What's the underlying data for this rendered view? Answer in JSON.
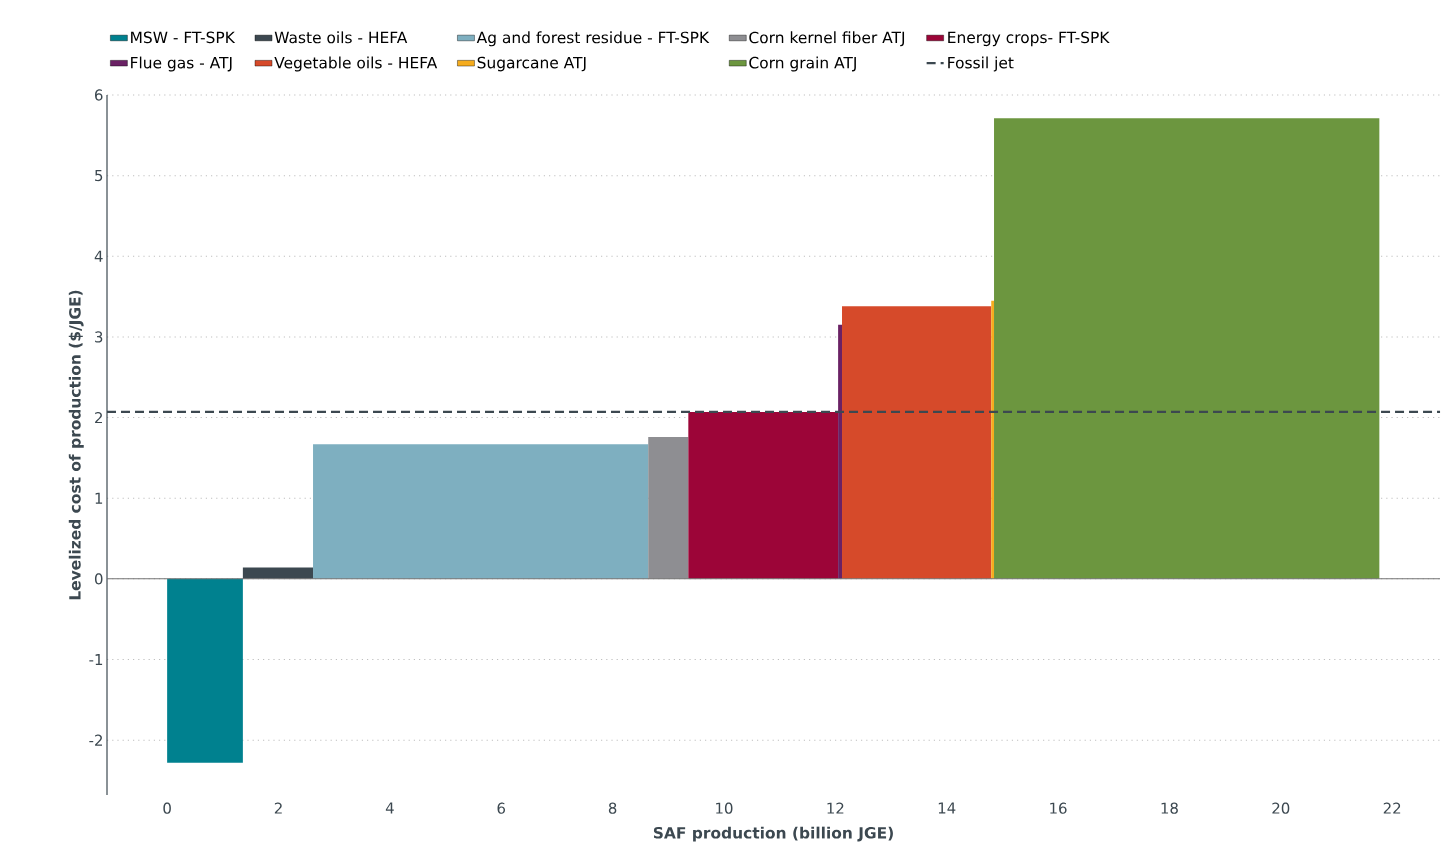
{
  "chart_data": {
    "type": "area",
    "xlabel": "SAF production (billion JGE)",
    "ylabel": "Levelized cost of production ($/JGE)",
    "xlim": [
      -1.08,
      22.86
    ],
    "ylim": [
      -2.68,
      6
    ],
    "xticks": [
      0,
      2,
      4,
      6,
      8,
      10,
      12,
      14,
      16,
      18,
      20,
      22
    ],
    "yticks": [
      -2,
      -1,
      0,
      1,
      2,
      3,
      4,
      5,
      6
    ],
    "grid": "y",
    "legend": "top",
    "series": [
      {
        "name": "MSW - FT-SPK",
        "color": "#00818f",
        "x": [
          0,
          1.36
        ],
        "values": [
          -2.28,
          -2.28
        ]
      },
      {
        "name": "Waste oils - HEFA",
        "color": "#3c4850",
        "x": [
          1.36,
          2.62
        ],
        "values": [
          0.14,
          0.14
        ]
      },
      {
        "name": "Ag and forest residue - FT-SPK",
        "color": "#7eafc0",
        "x": [
          2.62,
          8.64
        ],
        "values": [
          1.67,
          1.67
        ]
      },
      {
        "name": "Corn kernel fiber ATJ",
        "color": "#8e8e92",
        "x": [
          8.64,
          9.36
        ],
        "values": [
          1.76,
          1.76
        ]
      },
      {
        "name": "Energy crops- FT-SPK",
        "color": "#9c0538",
        "x": [
          9.36,
          12.05
        ],
        "values": [
          2.07,
          2.07
        ]
      },
      {
        "name": "Flue gas - ATJ",
        "color": "#6a2164",
        "x": [
          12.05,
          12.12
        ],
        "values": [
          3.15,
          3.15
        ]
      },
      {
        "name": "Vegetable oils - HEFA",
        "color": "#d64a2a",
        "x": [
          12.12,
          14.8
        ],
        "values": [
          3.38,
          3.38
        ]
      },
      {
        "name": "Sugarcane ATJ",
        "color": "#f5ac1e",
        "x": [
          14.8,
          14.85
        ],
        "values": [
          3.45,
          3.45
        ]
      },
      {
        "name": "Corn grain ATJ",
        "color": "#6c963f",
        "x": [
          14.85,
          21.77
        ],
        "values": [
          5.71,
          5.71
        ]
      }
    ],
    "ref_lines": [
      {
        "axis": "y",
        "value": 2.07,
        "label": "Fossil jet",
        "color": "#3c4850",
        "line_style": "dashed"
      }
    ]
  }
}
